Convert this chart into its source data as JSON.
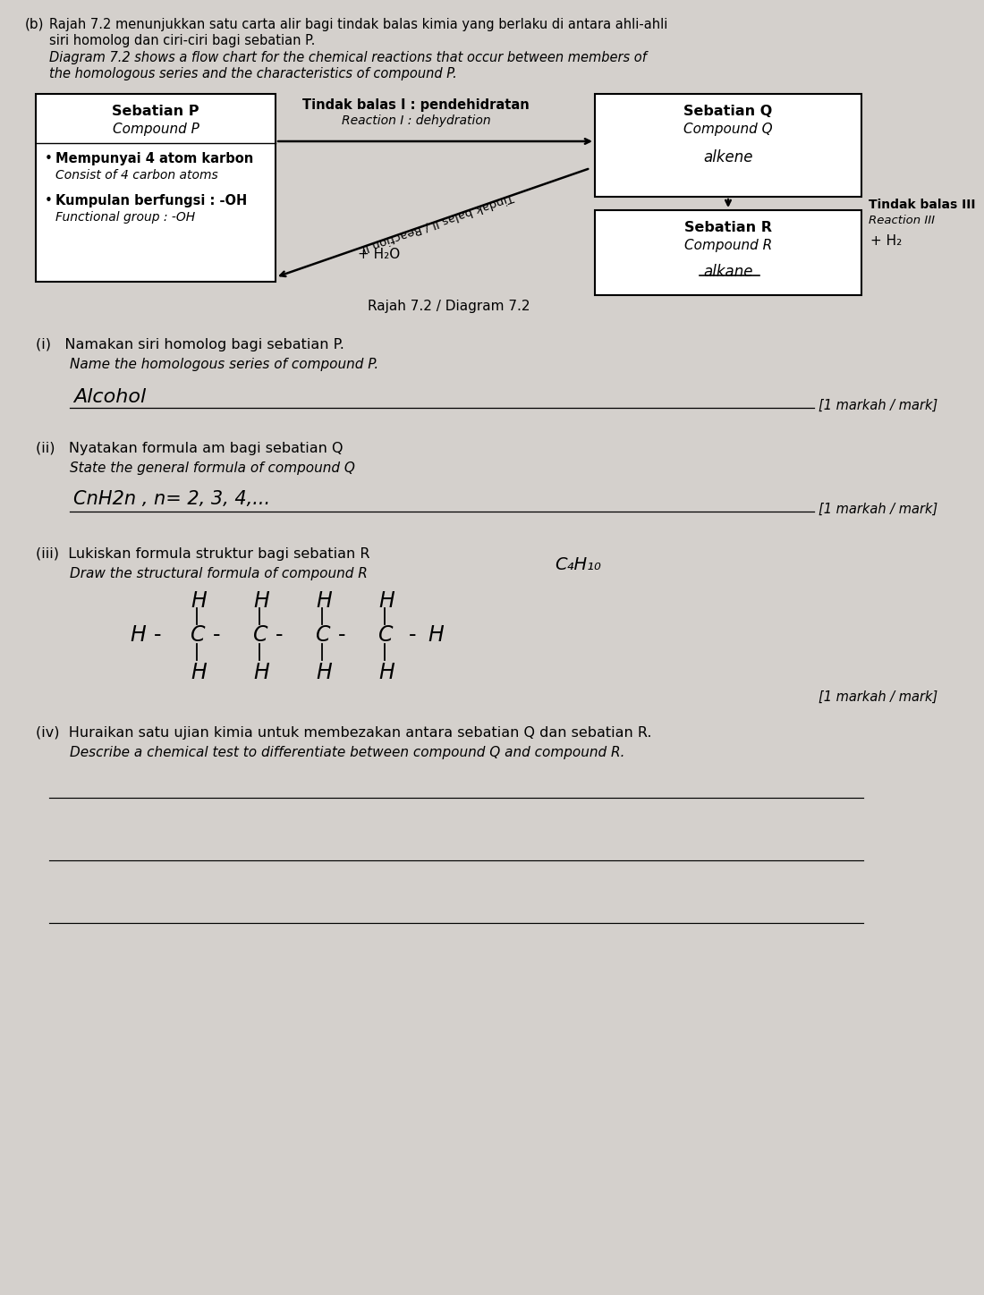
{
  "bg_color": "#d4d0cc",
  "header_b": "(b)",
  "header_line1": "Rajah 7.2 menunjukkan satu carta alir bagi tindak balas kimia yang berlaku di antara ahli-ahli",
  "header_line2": "siri homolog dan ciri-ciri bagi sebatian P.",
  "header_line3": "Diagram 7.2 shows a flow chart for the chemical reactions that occur between members of",
  "header_line4": "the homologous series and the characteristics of compound P.",
  "box_P_title1": "Sebatian P",
  "box_P_title2": "Compound P",
  "box_P_b1": "Mempunyai 4 atom karbon",
  "box_P_i1": "Consist of 4 carbon atoms",
  "box_P_b2": "Kumpulan berfungsi : -OH",
  "box_P_i2": "Functional group : -OH",
  "rxn1_b": "Tindak balas I : pendehidratan",
  "rxn1_i": "Reaction I : dehydration",
  "rxn2_label": "Tindak balas II / Reaction II",
  "rxn2_plus": "+ H₂O",
  "box_Q_title1": "Sebatian Q",
  "box_Q_title2": "Compound Q",
  "box_Q_content": "alkene",
  "rxn3_b": "Tindak balas III",
  "rxn3_i": "Reaction III",
  "rxn3_plus": "+ H₂",
  "box_R_title1": "Sebatian R",
  "box_R_title2": "Compound R",
  "box_R_content": "alkane",
  "diagram_label": "Rajah 7.2 / Diagram 7.2",
  "qi_malay": "(i)   Namakan siri homolog bagi sebatian P.",
  "qi_eng": "Name the homologous series of compound P.",
  "qi_answer": "Alcohol",
  "qi_marks": "[1 markah / mark]",
  "qii_malay": "(ii)   Nyatakan formula am bagi sebatian Q",
  "qii_eng": "State the general formula of compound Q",
  "qii_answer": "CnH2n , n= 2, 3, 4,...",
  "qii_marks": "[1 markah / mark]",
  "qiii_malay": "(iii)  Lukiskan formula struktur bagi sebatian R",
  "qiii_eng": "Draw the structural formula of compound R",
  "qiii_formula": "C₄H₁₀",
  "qiii_marks": "[1 markah / mark]",
  "qiv_malay": "(iv)  Huraikan satu ujian kimia untuk membezakan antara sebatian Q dan sebatian R.",
  "qiv_eng": "Describe a chemical test to differentiate between compound Q and compound R."
}
